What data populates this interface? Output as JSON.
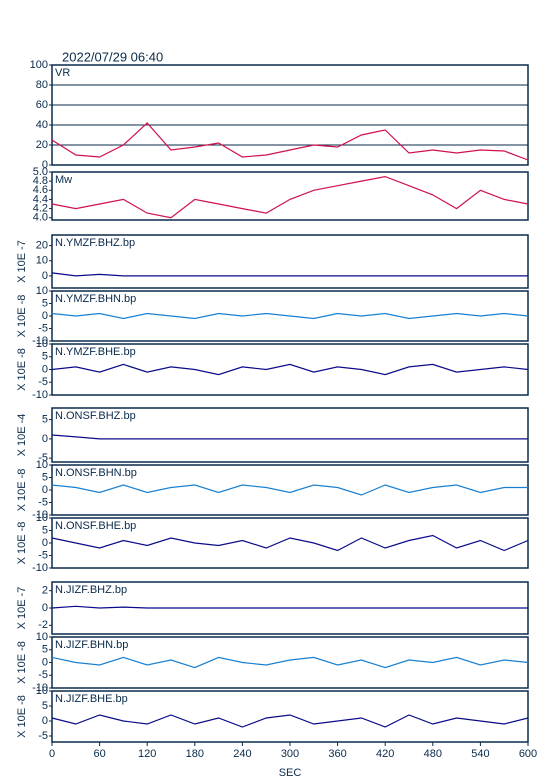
{
  "chart_data": [
    {
      "type": "line",
      "title": "2022/07/29 06:40",
      "label": "VR",
      "grid": true,
      "color": "#d0104c",
      "xlim": [
        0,
        600
      ],
      "ylim": [
        0,
        100
      ],
      "yticks": [
        0,
        20,
        40,
        60,
        80,
        100
      ],
      "x": [
        0,
        30,
        60,
        90,
        120,
        150,
        180,
        210,
        240,
        270,
        300,
        330,
        360,
        390,
        420,
        450,
        480,
        510,
        540,
        570,
        600
      ],
      "values": [
        25,
        10,
        8,
        20,
        42,
        15,
        18,
        22,
        8,
        10,
        15,
        20,
        18,
        30,
        35,
        12,
        15,
        12,
        15,
        14,
        5
      ]
    },
    {
      "type": "line",
      "label": "Mw",
      "color": "#d0104c",
      "xlim": [
        0,
        600
      ],
      "ylim": [
        3.95,
        5.0
      ],
      "yticks": [
        {
          "value": 4,
          "label": "4.0"
        },
        4.2,
        4.4,
        4.6,
        4.8,
        {
          "value": 5,
          "label": "5.0"
        }
      ],
      "x": [
        0,
        30,
        60,
        90,
        120,
        150,
        180,
        210,
        240,
        270,
        300,
        330,
        360,
        390,
        420,
        450,
        480,
        510,
        540,
        570,
        600
      ],
      "values": [
        4.3,
        4.2,
        4.3,
        4.4,
        4.1,
        4.0,
        4.4,
        4.3,
        4.2,
        4.1,
        4.4,
        4.6,
        4.7,
        4.8,
        4.9,
        4.7,
        4.5,
        4.2,
        4.6,
        4.4,
        4.3
      ]
    },
    {
      "type": "line",
      "label": "N.YMZF.BHZ.bp",
      "ylabel": "X 10E -7",
      "color": "#0a0a8a",
      "xlim": [
        0,
        600
      ],
      "ylim": [
        -8,
        27
      ],
      "yticks": [
        0,
        10,
        20
      ],
      "x": [
        0,
        30,
        60,
        90,
        120,
        150,
        180,
        210,
        240,
        270,
        300,
        330,
        360,
        390,
        420,
        450,
        480,
        510,
        540,
        570,
        600
      ],
      "values": [
        2,
        0,
        1,
        0,
        0,
        0,
        0,
        0,
        0,
        0,
        0,
        0,
        0,
        0,
        0,
        0,
        0,
        0,
        0,
        0,
        0
      ]
    },
    {
      "type": "line",
      "label": "N.YMZF.BHN.bp",
      "ylabel": "X 10E -8",
      "color": "#1a80d0",
      "xlim": [
        0,
        600
      ],
      "ylim": [
        -10,
        10
      ],
      "yticks": [
        -10,
        -5,
        0,
        5,
        10
      ],
      "x": [
        0,
        30,
        60,
        90,
        120,
        150,
        180,
        210,
        240,
        270,
        300,
        330,
        360,
        390,
        420,
        450,
        480,
        510,
        540,
        570,
        600
      ],
      "values": [
        1,
        0,
        1,
        -1,
        1,
        0,
        -1,
        1,
        0,
        1,
        0,
        -1,
        1,
        0,
        1,
        -1,
        0,
        1,
        0,
        1,
        0
      ]
    },
    {
      "type": "line",
      "label": "N.YMZF.BHE.bp",
      "ylabel": "X 10E -8",
      "color": "#0a0a8a",
      "xlim": [
        0,
        600
      ],
      "ylim": [
        -10,
        10
      ],
      "yticks": [
        -10,
        -5,
        0,
        5,
        10
      ],
      "x": [
        0,
        30,
        60,
        90,
        120,
        150,
        180,
        210,
        240,
        270,
        300,
        330,
        360,
        390,
        420,
        450,
        480,
        510,
        540,
        570,
        600
      ],
      "values": [
        0,
        1,
        -1,
        2,
        -1,
        1,
        0,
        -2,
        1,
        0,
        2,
        -1,
        1,
        0,
        -2,
        1,
        2,
        -1,
        0,
        1,
        0
      ]
    },
    {
      "type": "line",
      "label": "N.ONSF.BHZ.bp",
      "ylabel": "X 10E -4",
      "color": "#0a0a8a",
      "xlim": [
        0,
        600
      ],
      "ylim": [
        -6,
        8
      ],
      "yticks": [
        -5,
        0,
        5
      ],
      "x": [
        0,
        30,
        60,
        90,
        120,
        150,
        180,
        210,
        240,
        270,
        300,
        330,
        360,
        390,
        420,
        450,
        480,
        510,
        540,
        570,
        600
      ],
      "values": [
        1,
        0.5,
        0,
        0,
        0,
        0,
        0,
        0,
        0,
        0,
        0,
        0,
        0,
        0,
        0,
        0,
        0,
        0,
        0,
        0,
        0
      ]
    },
    {
      "type": "line",
      "label": "N.ONSF.BHN.bp",
      "ylabel": "X 10E -8",
      "color": "#1a80d0",
      "xlim": [
        0,
        600
      ],
      "ylim": [
        -10,
        10
      ],
      "yticks": [
        -10,
        -5,
        0,
        5,
        10
      ],
      "x": [
        0,
        30,
        60,
        90,
        120,
        150,
        180,
        210,
        240,
        270,
        300,
        330,
        360,
        390,
        420,
        450,
        480,
        510,
        540,
        570,
        600
      ],
      "values": [
        2,
        1,
        -1,
        2,
        -1,
        1,
        2,
        -1,
        2,
        1,
        -1,
        2,
        1,
        -2,
        2,
        -1,
        1,
        2,
        -1,
        1,
        1
      ]
    },
    {
      "type": "line",
      "label": "N.ONSF.BHE.bp",
      "ylabel": "X 10E -8",
      "color": "#0a0a8a",
      "xlim": [
        0,
        600
      ],
      "ylim": [
        -10,
        10
      ],
      "yticks": [
        -10,
        -5,
        0,
        5,
        10
      ],
      "x": [
        0,
        30,
        60,
        90,
        120,
        150,
        180,
        210,
        240,
        270,
        300,
        330,
        360,
        390,
        420,
        450,
        480,
        510,
        540,
        570,
        600
      ],
      "values": [
        2,
        0,
        -2,
        1,
        -1,
        2,
        0,
        -1,
        1,
        -2,
        2,
        0,
        -3,
        2,
        -2,
        1,
        3,
        -2,
        1,
        -3,
        1
      ]
    },
    {
      "type": "line",
      "label": "N.JIZF.BHZ.bp",
      "ylabel": "X 10E -7",
      "color": "#0a0a8a",
      "xlim": [
        0,
        600
      ],
      "ylim": [
        -3,
        3
      ],
      "yticks": [
        -2,
        0,
        2
      ],
      "x": [
        0,
        30,
        60,
        90,
        120,
        150,
        180,
        210,
        240,
        270,
        300,
        330,
        360,
        390,
        420,
        450,
        480,
        510,
        540,
        570,
        600
      ],
      "values": [
        0,
        0.2,
        0,
        0.1,
        0,
        0,
        0,
        0,
        0,
        0,
        0,
        0,
        0,
        0,
        0,
        0,
        0,
        0,
        0,
        0,
        0
      ]
    },
    {
      "type": "line",
      "label": "N.JIZF.BHN.bp",
      "ylabel": "X 10E -8",
      "color": "#1a80d0",
      "xlim": [
        0,
        600
      ],
      "ylim": [
        -10,
        10
      ],
      "yticks": [
        -10,
        -5,
        0,
        5,
        10
      ],
      "x": [
        0,
        30,
        60,
        90,
        120,
        150,
        180,
        210,
        240,
        270,
        300,
        330,
        360,
        390,
        420,
        450,
        480,
        510,
        540,
        570,
        600
      ],
      "values": [
        2,
        0,
        -1,
        2,
        -1,
        1,
        -2,
        2,
        0,
        -1,
        1,
        2,
        -1,
        1,
        -2,
        1,
        0,
        2,
        -1,
        1,
        0
      ]
    },
    {
      "type": "line",
      "label": "N.JIZF.BHE.bp",
      "ylabel": "X 10E -8",
      "xlabel": "SEC",
      "color": "#0a0a8a",
      "xlim": [
        0,
        600
      ],
      "ylim": [
        -7,
        10
      ],
      "yticks": [
        -5,
        0,
        5,
        10
      ],
      "xticks": [
        0,
        60,
        120,
        180,
        240,
        300,
        360,
        420,
        480,
        540,
        600
      ],
      "x": [
        0,
        30,
        60,
        90,
        120,
        150,
        180,
        210,
        240,
        270,
        300,
        330,
        360,
        390,
        420,
        450,
        480,
        510,
        540,
        570,
        600
      ],
      "values": [
        1,
        -1,
        2,
        0,
        -1,
        2,
        -1,
        1,
        -2,
        1,
        2,
        -1,
        0,
        1,
        -2,
        2,
        -1,
        1,
        0,
        -1,
        1
      ]
    }
  ]
}
